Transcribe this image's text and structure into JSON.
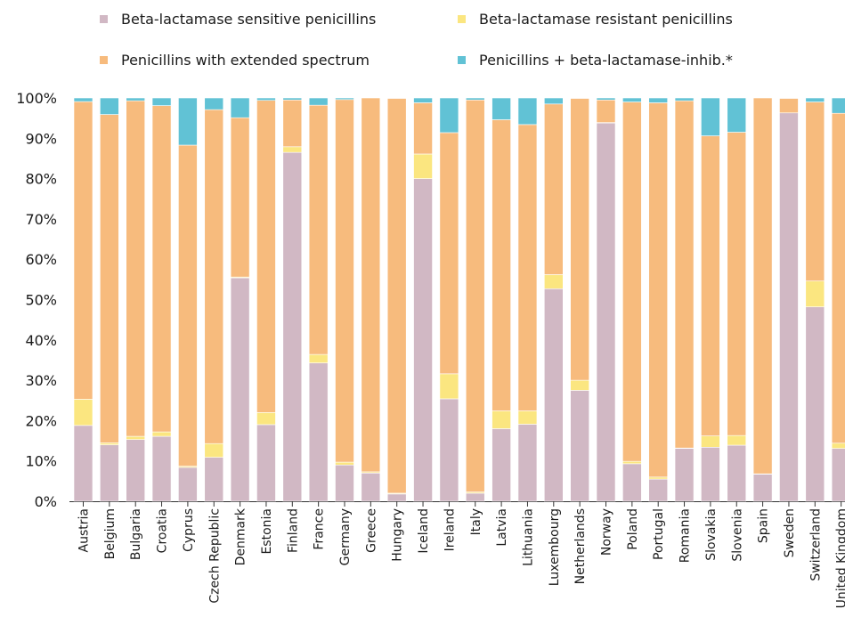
{
  "chart_data": {
    "type": "bar",
    "stacked": true,
    "categories": [
      "Austria",
      "Belgium",
      "Bulgaria",
      "Croatia",
      "Cyprus",
      "Czech Republic",
      "Denmark",
      "Estonia",
      "Finland",
      "France",
      "Germany",
      "Greece",
      "Hungary",
      "Iceland",
      "Ireland",
      "Italy",
      "Latvia",
      "Lithuania",
      "Luxembourg",
      "Netherlands",
      "Norway",
      "Poland",
      "Portugal",
      "Romania",
      "Slovakia",
      "Slovenia",
      "Spain",
      "Sweden",
      "Switzerland",
      "United Kingdom"
    ],
    "series": [
      {
        "name": "Beta-lactamase sensitive penicillins",
        "color": "#d1b8c4",
        "values": [
          18.8,
          14.0,
          15.3,
          16.1,
          8.4,
          10.9,
          55.4,
          19.0,
          86.5,
          34.3,
          9.0,
          7.0,
          1.8,
          80.0,
          25.4,
          2.0,
          18.0,
          19.1,
          52.7,
          27.5,
          93.8,
          9.3,
          5.5,
          13.1,
          13.4,
          13.9,
          6.7,
          96.3,
          48.2,
          13.1
        ]
      },
      {
        "name": "Beta-lactamase resistant penicillins",
        "color": "#fbe680",
        "values": [
          6.5,
          0.5,
          0.8,
          1.1,
          0.3,
          3.4,
          0.2,
          3.0,
          1.4,
          2.1,
          0.7,
          0.3,
          0.2,
          6.1,
          6.2,
          0.3,
          4.4,
          3.3,
          3.5,
          2.5,
          0.1,
          0.6,
          0.5,
          0.1,
          2.8,
          2.4,
          0.1,
          0.0,
          6.4,
          1.3
        ]
      },
      {
        "name": "Penicillins with extended spectrum",
        "color": "#f7bb7d",
        "values": [
          73.8,
          81.4,
          83.2,
          80.9,
          79.6,
          82.8,
          39.5,
          77.4,
          11.6,
          61.8,
          89.9,
          92.7,
          97.9,
          12.7,
          59.8,
          97.2,
          72.2,
          71.0,
          42.3,
          69.9,
          5.6,
          89.1,
          92.8,
          86.1,
          74.4,
          75.2,
          93.2,
          3.6,
          44.4,
          81.8
        ]
      },
      {
        "name": "Penicillins + beta-lactamase-inhib.*",
        "color": "#61c2d5",
        "values": [
          0.9,
          4.1,
          0.7,
          1.9,
          11.7,
          2.9,
          4.9,
          0.6,
          0.5,
          1.8,
          0.4,
          0.0,
          0.1,
          1.2,
          8.6,
          0.5,
          5.4,
          6.6,
          1.5,
          0.1,
          0.5,
          1.0,
          1.2,
          0.7,
          9.4,
          8.5,
          0.0,
          0.1,
          1.0,
          3.8
        ]
      }
    ],
    "xlabel": "",
    "ylabel": "",
    "ylim": [
      0,
      100
    ],
    "yticks": [
      "0%",
      "10%",
      "20%",
      "30%",
      "40%",
      "50%",
      "60%",
      "70%",
      "80%",
      "90%",
      "100%"
    ],
    "grid": false,
    "legend_position": "top"
  }
}
